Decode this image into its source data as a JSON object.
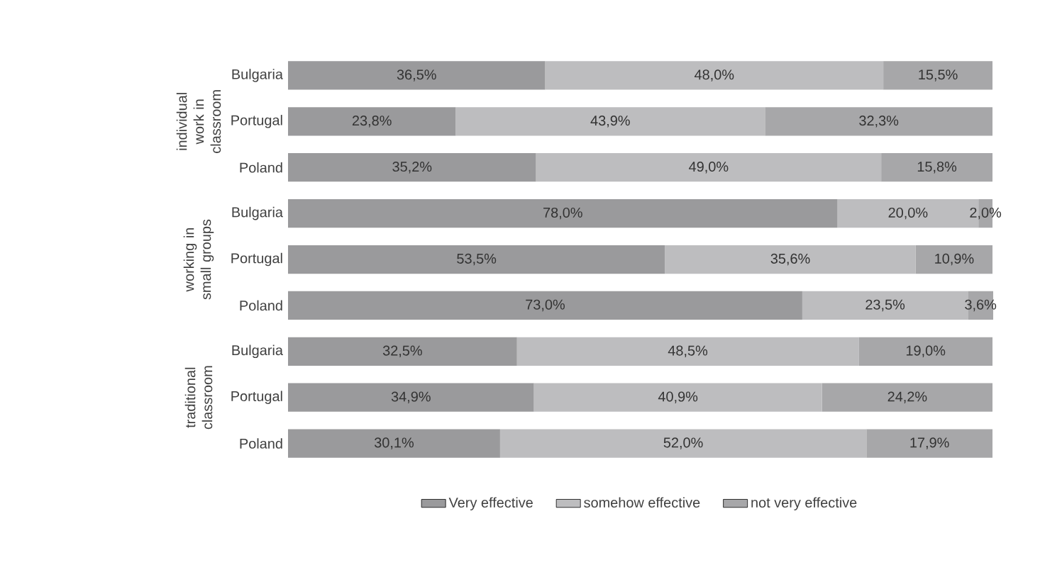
{
  "chart_data": {
    "type": "bar",
    "orientation": "horizontal",
    "stacked": true,
    "categories": [
      "Bulgaria",
      "Portugal",
      "Poland",
      "Bulgaria",
      "Portugal",
      "Poland",
      "Bulgaria",
      "Portugal",
      "Poland"
    ],
    "series": [
      {
        "name": "Very effective",
        "color": "#9a9a9c",
        "values": [
          36.5,
          23.8,
          35.2,
          78.0,
          53.5,
          73.0,
          32.5,
          34.9,
          30.1
        ],
        "value_labels": [
          "36,5%",
          "23,8%",
          "35,2%",
          "78,0%",
          "53,5%",
          "73,0%",
          "32,5%",
          "34,9%",
          "30,1%"
        ]
      },
      {
        "name": "somehow effective",
        "color": "#bdbdbf",
        "values": [
          48.0,
          43.9,
          49.0,
          20.0,
          35.6,
          23.5,
          48.5,
          40.9,
          52.0
        ],
        "value_labels": [
          "48,0%",
          "43,9%",
          "49,0%",
          "20,0%",
          "35,6%",
          "23,5%",
          "48,5%",
          "40,9%",
          "52,0%"
        ]
      },
      {
        "name": "not very effective",
        "color": "#a7a7a9",
        "values": [
          15.5,
          32.3,
          15.8,
          2.0,
          10.9,
          3.6,
          19.0,
          24.2,
          17.9
        ],
        "value_labels": [
          "15,5%",
          "32,3%",
          "15,8%",
          "2,0%",
          "10,9%",
          "3,6%",
          "19,0%",
          "24,2%",
          "17,9%"
        ]
      }
    ],
    "tick_labels": "y",
    "grid": false,
    "legend": "bottom",
    "annotations": [
      "individual work in classroom",
      "working in small groups",
      "traditional classroom"
    ]
  }
}
